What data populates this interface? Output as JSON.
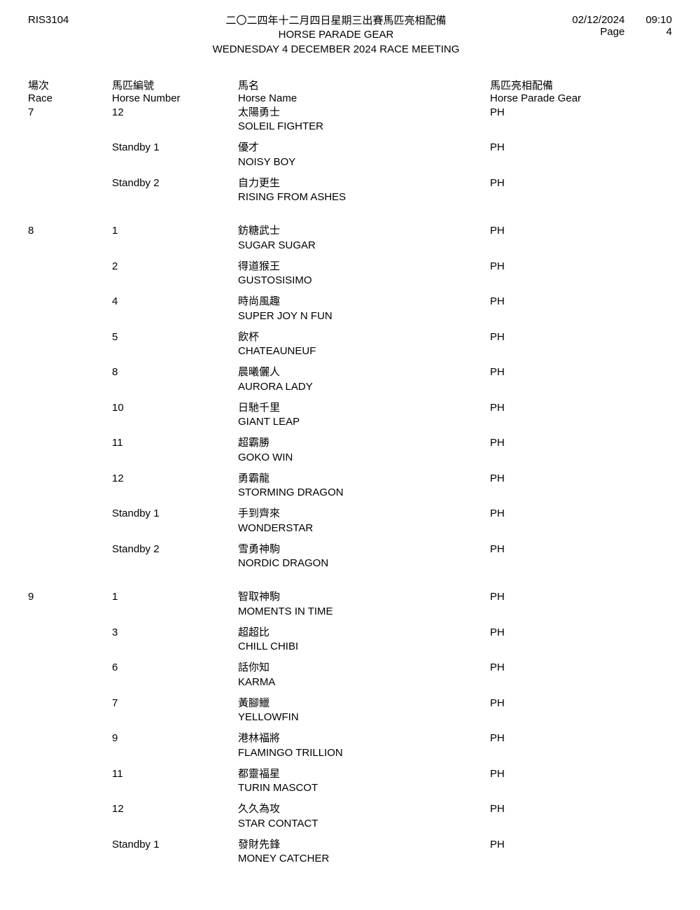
{
  "header": {
    "report_id": "RIS3104",
    "title_cn": "二〇二四年十二月四日星期三出賽馬匹亮相配備",
    "title_en1": "HORSE PARADE GEAR",
    "title_en2": "WEDNESDAY 4 DECEMBER 2024 RACE MEETING",
    "date": "02/12/2024",
    "time": "09:10",
    "page_label": "Page",
    "page_num": "4"
  },
  "columns": {
    "race_cn": "場次",
    "race_en": "Race",
    "number_cn": "馬匹編號",
    "number_en": "Horse Number",
    "name_cn": "馬名",
    "name_en": "Horse Name",
    "gear_cn": "馬匹亮相配備",
    "gear_en": "Horse Parade Gear"
  },
  "races": [
    {
      "race": "7",
      "entries": [
        {
          "num": "12",
          "name_cn": "太陽勇士",
          "name_en": "SOLEIL FIGHTER",
          "gear": "PH"
        },
        {
          "num": "Standby 1",
          "name_cn": "優才",
          "name_en": "NOISY BOY",
          "gear": "PH"
        },
        {
          "num": "Standby 2",
          "name_cn": "自力更生",
          "name_en": "RISING FROM ASHES",
          "gear": "PH"
        }
      ]
    },
    {
      "race": "8",
      "entries": [
        {
          "num": "1",
          "name_cn": "鈁糖武士",
          "name_en": "SUGAR SUGAR",
          "gear": "PH"
        },
        {
          "num": "2",
          "name_cn": "得道猴王",
          "name_en": "GUSTOSISIMO",
          "gear": "PH"
        },
        {
          "num": "4",
          "name_cn": "時尚風趣",
          "name_en": "SUPER JOY N FUN",
          "gear": "PH"
        },
        {
          "num": "5",
          "name_cn": "飲杯",
          "name_en": "CHATEAUNEUF",
          "gear": "PH"
        },
        {
          "num": "8",
          "name_cn": "晨曦儷人",
          "name_en": "AURORA LADY",
          "gear": "PH"
        },
        {
          "num": "10",
          "name_cn": "日馳千里",
          "name_en": "GIANT LEAP",
          "gear": "PH"
        },
        {
          "num": "11",
          "name_cn": "超霸勝",
          "name_en": "GOKO WIN",
          "gear": "PH"
        },
        {
          "num": "12",
          "name_cn": "勇霸龍",
          "name_en": "STORMING DRAGON",
          "gear": "PH"
        },
        {
          "num": "Standby 1",
          "name_cn": "手到齊來",
          "name_en": "WONDERSTAR",
          "gear": "PH"
        },
        {
          "num": "Standby 2",
          "name_cn": "雪勇神駒",
          "name_en": "NORDIC DRAGON",
          "gear": "PH"
        }
      ]
    },
    {
      "race": "9",
      "entries": [
        {
          "num": "1",
          "name_cn": "智取神駒",
          "name_en": "MOMENTS IN TIME",
          "gear": "PH"
        },
        {
          "num": "3",
          "name_cn": "超超比",
          "name_en": "CHILL CHIBI",
          "gear": "PH"
        },
        {
          "num": "6",
          "name_cn": "話你知",
          "name_en": "KARMA",
          "gear": "PH"
        },
        {
          "num": "7",
          "name_cn": "黃腳鱲",
          "name_en": "YELLOWFIN",
          "gear": "PH"
        },
        {
          "num": "9",
          "name_cn": "港林福將",
          "name_en": "FLAMINGO TRILLION",
          "gear": "PH"
        },
        {
          "num": "11",
          "name_cn": "都靈福星",
          "name_en": "TURIN MASCOT",
          "gear": "PH"
        },
        {
          "num": "12",
          "name_cn": "久久為攻",
          "name_en": "STAR CONTACT",
          "gear": "PH"
        },
        {
          "num": "Standby 1",
          "name_cn": "發財先鋒",
          "name_en": "MONEY CATCHER",
          "gear": "PH"
        }
      ]
    }
  ],
  "style": {
    "font_size_header": 15,
    "font_size_body": 15,
    "text_color": "#000000",
    "background_color": "#ffffff"
  }
}
